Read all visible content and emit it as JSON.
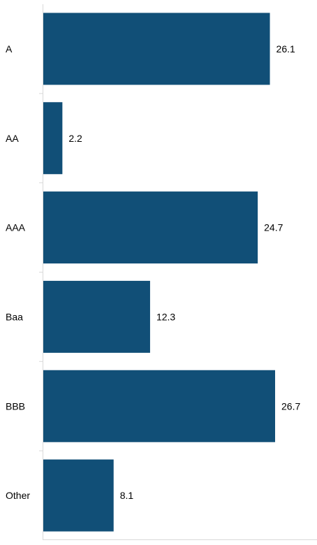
{
  "chart_data": {
    "type": "bar",
    "orientation": "horizontal",
    "categories": [
      "A",
      "AA",
      "AAA",
      "Baa",
      "BBB",
      "Other"
    ],
    "values": [
      26.1,
      2.2,
      24.7,
      12.3,
      26.7,
      8.1
    ],
    "value_labels": [
      "26.1",
      "2.2",
      "24.7",
      "12.3",
      "26.7",
      "8.1"
    ],
    "title": "",
    "xlabel": "",
    "ylabel": "",
    "xlim": [
      0,
      29
    ],
    "grid": false,
    "legend": "none",
    "colors": {
      "bar": "#114f77",
      "axis": "#d9d9d9",
      "text": "#000000"
    }
  }
}
